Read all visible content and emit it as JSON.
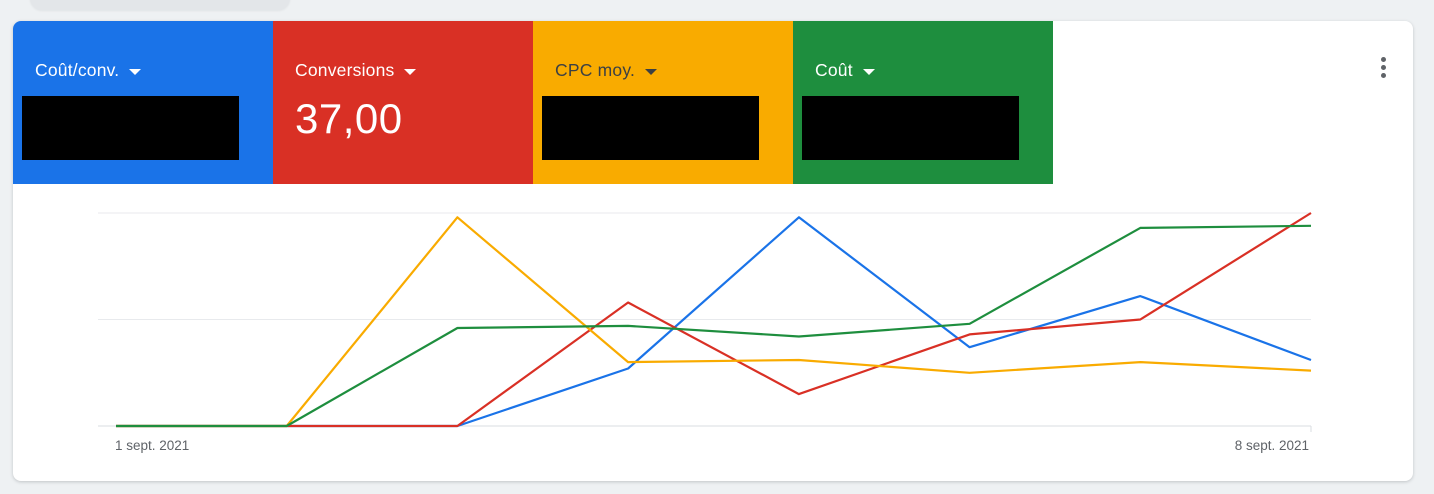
{
  "metrics": [
    {
      "label": "Coût/conv.",
      "value": "",
      "redacted": true,
      "color": "#1a73e8",
      "text_color": "#ffffff"
    },
    {
      "label": "Conversions",
      "value": "37,00",
      "redacted": false,
      "color": "#d93025",
      "text_color": "#ffffff"
    },
    {
      "label": "CPC moy.",
      "value": "",
      "redacted": true,
      "color": "#f9ab00",
      "text_color": "#3c4043"
    },
    {
      "label": "Coût",
      "value": "",
      "redacted": true,
      "color": "#1e8e3e",
      "text_color": "#ffffff"
    }
  ],
  "menu": {
    "icon": "more-vert-icon"
  },
  "chart_data": {
    "type": "line",
    "x": [
      "1 sept. 2021",
      "2 sept. 2021",
      "3 sept. 2021",
      "4 sept. 2021",
      "5 sept. 2021",
      "6 sept. 2021",
      "7 sept. 2021",
      "8 sept. 2021"
    ],
    "xtick_labels": [
      "1 sept. 2021",
      "8 sept. 2021"
    ],
    "ylim": [
      0,
      100
    ],
    "gridlines": [
      0,
      50,
      100
    ],
    "series": [
      {
        "metric": "Coût/conv.",
        "color": "#1a73e8",
        "values": [
          0,
          0,
          0,
          27,
          98,
          37,
          61,
          31
        ]
      },
      {
        "metric": "Conversions",
        "color": "#d93025",
        "values": [
          0,
          0,
          0,
          58,
          15,
          43,
          50,
          100
        ]
      },
      {
        "metric": "CPC moy.",
        "color": "#f9ab00",
        "values": [
          0,
          0,
          98,
          30,
          31,
          25,
          30,
          26
        ]
      },
      {
        "metric": "Coût",
        "color": "#1e8e3e",
        "values": [
          0,
          0,
          46,
          47,
          42,
          48,
          93,
          94
        ]
      }
    ]
  }
}
